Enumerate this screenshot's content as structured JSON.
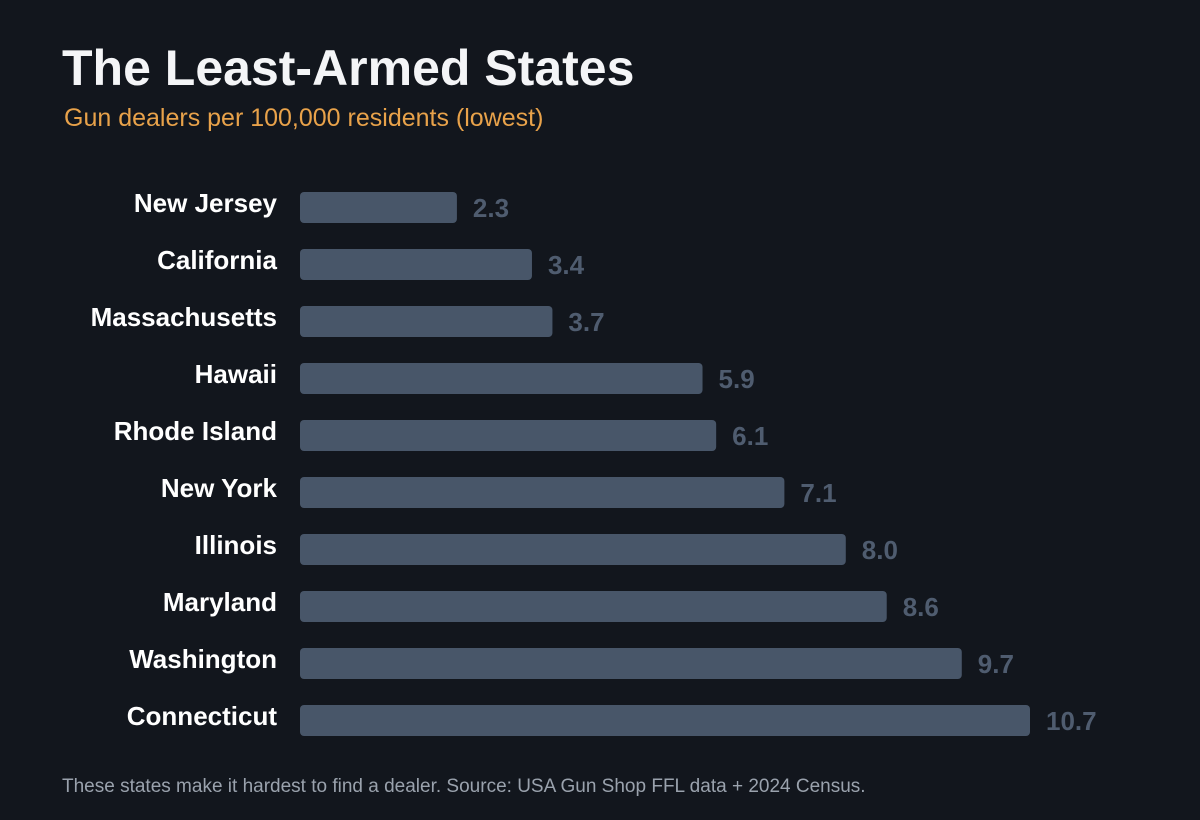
{
  "colors": {
    "background": "#12161d",
    "bar": "#485669",
    "value_label": "#4f5c6f",
    "subtitle": "#e8a24a",
    "title": "#f4f5f7",
    "footnote": "#9aa2ad"
  },
  "footnote": "These states make it hardest to find a dealer. Source: USA Gun Shop FFL data + 2024 Census.",
  "chart_data": {
    "type": "bar",
    "orientation": "horizontal",
    "title": "The Least-Armed States",
    "subtitle": "Gun dealers per 100,000 residents (lowest)",
    "categories": [
      "New Jersey",
      "California",
      "Massachusetts",
      "Hawaii",
      "Rhode Island",
      "New York",
      "Illinois",
      "Maryland",
      "Washington",
      "Connecticut"
    ],
    "values": [
      2.3,
      3.4,
      3.7,
      5.9,
      6.1,
      7.1,
      8.0,
      8.6,
      9.7,
      10.7
    ],
    "value_labels": [
      "2.3",
      "3.4",
      "3.7",
      "5.9",
      "6.1",
      "7.1",
      "8.0",
      "8.6",
      "9.7",
      "10.7"
    ],
    "xlim": [
      0,
      10.7
    ],
    "grid": false,
    "legend": "none"
  }
}
